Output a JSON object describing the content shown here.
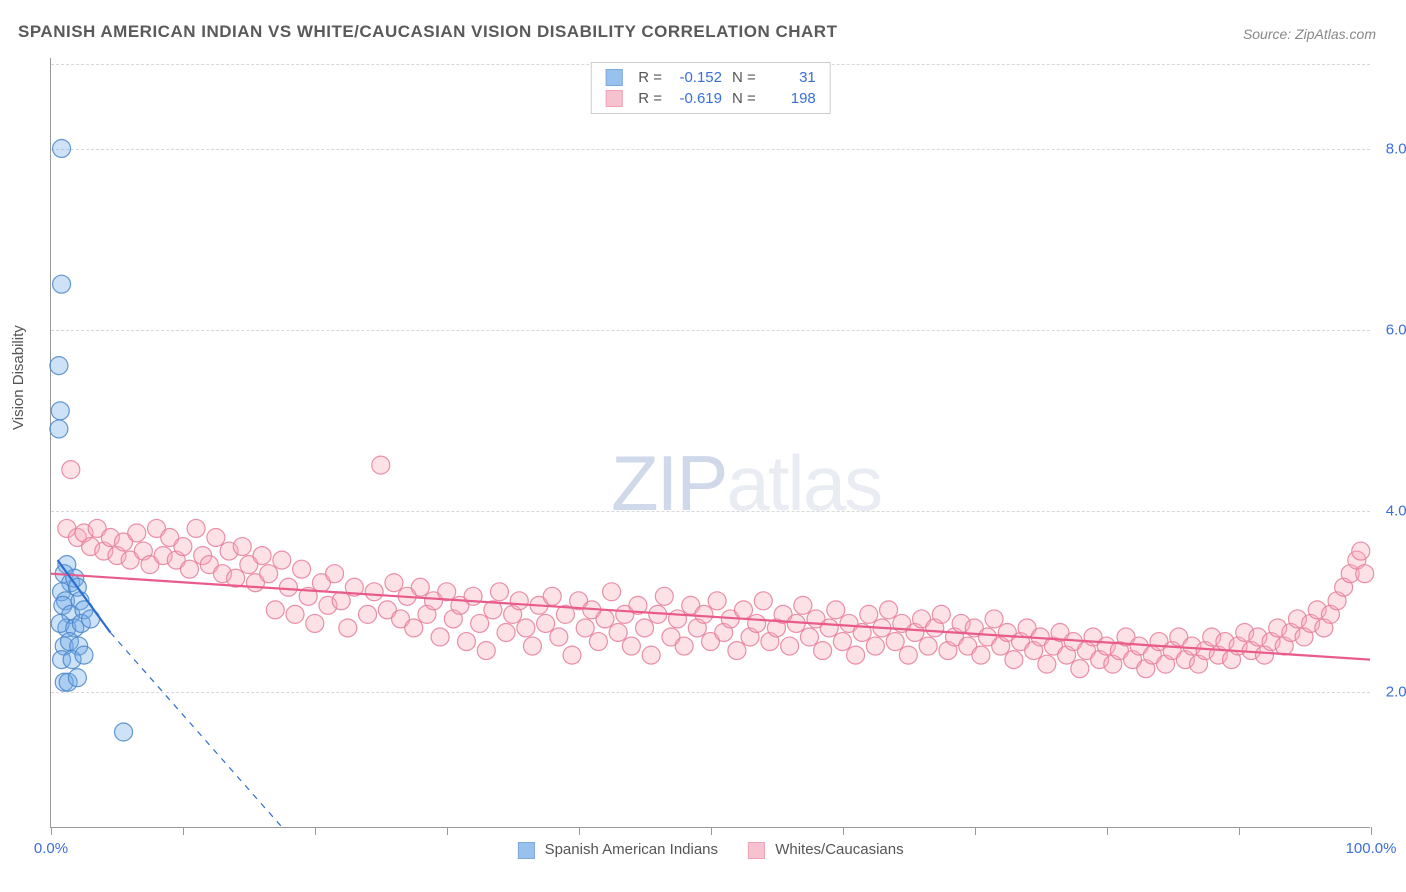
{
  "title": "SPANISH AMERICAN INDIAN VS WHITE/CAUCASIAN VISION DISABILITY CORRELATION CHART",
  "source": "Source: ZipAtlas.com",
  "ylabel": "Vision Disability",
  "watermark_zip": "ZIP",
  "watermark_atlas": "atlas",
  "chart": {
    "type": "scatter",
    "background_color": "#ffffff",
    "grid_color": "#d8d8d8",
    "axis_color": "#999999",
    "label_color": "#555555",
    "tick_label_color": "#3a6fd8",
    "title_fontsize": 17,
    "label_fontsize": 15,
    "tick_fontsize": 15,
    "xlim": [
      0,
      100
    ],
    "ylim": [
      0.5,
      9.0
    ],
    "x_ticks": [
      0,
      10,
      20,
      30,
      40,
      50,
      60,
      70,
      80,
      90,
      100
    ],
    "x_tick_labels": {
      "0": "0.0%",
      "100": "100.0%"
    },
    "y_ticks": [
      2.0,
      4.0,
      6.0,
      8.0
    ],
    "y_tick_labels": [
      "2.0%",
      "4.0%",
      "6.0%",
      "8.0%"
    ],
    "marker_radius": 9,
    "marker_fill_opacity": 0.35,
    "marker_stroke_opacity": 0.85,
    "marker_stroke_width": 1.2,
    "trend_line_width": 2.2,
    "series": [
      {
        "name": "Spanish American Indians",
        "color": "#6fa8e8",
        "stroke": "#4a86c9",
        "line_color": "#2e6dd0",
        "R": "-0.152",
        "N": "31",
        "trend_solid": {
          "x1": 0.5,
          "y1": 3.45,
          "x2": 4.5,
          "y2": 2.65
        },
        "trend_dashed": {
          "x1": 4.5,
          "y1": 2.65,
          "x2": 17.5,
          "y2": 0.5
        },
        "points": [
          [
            0.8,
            8.0
          ],
          [
            0.8,
            6.5
          ],
          [
            0.6,
            5.6
          ],
          [
            0.7,
            5.1
          ],
          [
            0.6,
            4.9
          ],
          [
            1.2,
            3.4
          ],
          [
            1.0,
            3.3
          ],
          [
            1.5,
            3.2
          ],
          [
            1.8,
            3.25
          ],
          [
            0.8,
            3.1
          ],
          [
            1.1,
            3.0
          ],
          [
            2.0,
            3.15
          ],
          [
            2.2,
            3.0
          ],
          [
            0.9,
            2.95
          ],
          [
            1.5,
            2.85
          ],
          [
            2.5,
            2.9
          ],
          [
            1.2,
            2.7
          ],
          [
            0.7,
            2.75
          ],
          [
            1.8,
            2.7
          ],
          [
            2.3,
            2.75
          ],
          [
            3.0,
            2.8
          ],
          [
            1.0,
            2.5
          ],
          [
            1.4,
            2.55
          ],
          [
            2.1,
            2.5
          ],
          [
            0.8,
            2.35
          ],
          [
            1.6,
            2.35
          ],
          [
            2.5,
            2.4
          ],
          [
            1.0,
            2.1
          ],
          [
            1.3,
            2.1
          ],
          [
            2.0,
            2.15
          ],
          [
            5.5,
            1.55
          ]
        ]
      },
      {
        "name": "Whites/Caucasians",
        "color": "#f5a9bb",
        "stroke": "#e77d9a",
        "line_color": "#e85b8a",
        "R": "-0.619",
        "N": "198",
        "trend_solid": {
          "x1": 0,
          "y1": 3.3,
          "x2": 100,
          "y2": 2.35
        },
        "points": [
          [
            1.5,
            4.45
          ],
          [
            1.2,
            3.8
          ],
          [
            2.0,
            3.7
          ],
          [
            2.5,
            3.75
          ],
          [
            3.0,
            3.6
          ],
          [
            3.5,
            3.8
          ],
          [
            4.0,
            3.55
          ],
          [
            4.5,
            3.7
          ],
          [
            5.0,
            3.5
          ],
          [
            5.5,
            3.65
          ],
          [
            6.0,
            3.45
          ],
          [
            6.5,
            3.75
          ],
          [
            7.0,
            3.55
          ],
          [
            7.5,
            3.4
          ],
          [
            8.0,
            3.8
          ],
          [
            8.5,
            3.5
          ],
          [
            9.0,
            3.7
          ],
          [
            9.5,
            3.45
          ],
          [
            10.0,
            3.6
          ],
          [
            10.5,
            3.35
          ],
          [
            11.0,
            3.8
          ],
          [
            11.5,
            3.5
          ],
          [
            12.0,
            3.4
          ],
          [
            12.5,
            3.7
          ],
          [
            13.0,
            3.3
          ],
          [
            13.5,
            3.55
          ],
          [
            14.0,
            3.25
          ],
          [
            14.5,
            3.6
          ],
          [
            15.0,
            3.4
          ],
          [
            15.5,
            3.2
          ],
          [
            16.0,
            3.5
          ],
          [
            16.5,
            3.3
          ],
          [
            17.0,
            2.9
          ],
          [
            17.5,
            3.45
          ],
          [
            18.0,
            3.15
          ],
          [
            18.5,
            2.85
          ],
          [
            19.0,
            3.35
          ],
          [
            19.5,
            3.05
          ],
          [
            20.0,
            2.75
          ],
          [
            20.5,
            3.2
          ],
          [
            21.0,
            2.95
          ],
          [
            21.5,
            3.3
          ],
          [
            22.0,
            3.0
          ],
          [
            22.5,
            2.7
          ],
          [
            23.0,
            3.15
          ],
          [
            24.0,
            2.85
          ],
          [
            24.5,
            3.1
          ],
          [
            25.0,
            4.5
          ],
          [
            25.5,
            2.9
          ],
          [
            26.0,
            3.2
          ],
          [
            26.5,
            2.8
          ],
          [
            27.0,
            3.05
          ],
          [
            27.5,
            2.7
          ],
          [
            28.0,
            3.15
          ],
          [
            28.5,
            2.85
          ],
          [
            29.0,
            3.0
          ],
          [
            29.5,
            2.6
          ],
          [
            30.0,
            3.1
          ],
          [
            30.5,
            2.8
          ],
          [
            31.0,
            2.95
          ],
          [
            31.5,
            2.55
          ],
          [
            32.0,
            3.05
          ],
          [
            32.5,
            2.75
          ],
          [
            33.0,
            2.45
          ],
          [
            33.5,
            2.9
          ],
          [
            34.0,
            3.1
          ],
          [
            34.5,
            2.65
          ],
          [
            35.0,
            2.85
          ],
          [
            35.5,
            3.0
          ],
          [
            36.0,
            2.7
          ],
          [
            36.5,
            2.5
          ],
          [
            37.0,
            2.95
          ],
          [
            37.5,
            2.75
          ],
          [
            38.0,
            3.05
          ],
          [
            38.5,
            2.6
          ],
          [
            39.0,
            2.85
          ],
          [
            39.5,
            2.4
          ],
          [
            40.0,
            3.0
          ],
          [
            40.5,
            2.7
          ],
          [
            41.0,
            2.9
          ],
          [
            41.5,
            2.55
          ],
          [
            42.0,
            2.8
          ],
          [
            42.5,
            3.1
          ],
          [
            43.0,
            2.65
          ],
          [
            43.5,
            2.85
          ],
          [
            44.0,
            2.5
          ],
          [
            44.5,
            2.95
          ],
          [
            45.0,
            2.7
          ],
          [
            45.5,
            2.4
          ],
          [
            46.0,
            2.85
          ],
          [
            46.5,
            3.05
          ],
          [
            47.0,
            2.6
          ],
          [
            47.5,
            2.8
          ],
          [
            48.0,
            2.5
          ],
          [
            48.5,
            2.95
          ],
          [
            49.0,
            2.7
          ],
          [
            49.5,
            2.85
          ],
          [
            50.0,
            2.55
          ],
          [
            50.5,
            3.0
          ],
          [
            51.0,
            2.65
          ],
          [
            51.5,
            2.8
          ],
          [
            52.0,
            2.45
          ],
          [
            52.5,
            2.9
          ],
          [
            53.0,
            2.6
          ],
          [
            53.5,
            2.75
          ],
          [
            54.0,
            3.0
          ],
          [
            54.5,
            2.55
          ],
          [
            55.0,
            2.7
          ],
          [
            55.5,
            2.85
          ],
          [
            56.0,
            2.5
          ],
          [
            56.5,
            2.75
          ],
          [
            57.0,
            2.95
          ],
          [
            57.5,
            2.6
          ],
          [
            58.0,
            2.8
          ],
          [
            58.5,
            2.45
          ],
          [
            59.0,
            2.7
          ],
          [
            59.5,
            2.9
          ],
          [
            60.0,
            2.55
          ],
          [
            60.5,
            2.75
          ],
          [
            61.0,
            2.4
          ],
          [
            61.5,
            2.65
          ],
          [
            62.0,
            2.85
          ],
          [
            62.5,
            2.5
          ],
          [
            63.0,
            2.7
          ],
          [
            63.5,
            2.9
          ],
          [
            64.0,
            2.55
          ],
          [
            64.5,
            2.75
          ],
          [
            65.0,
            2.4
          ],
          [
            65.5,
            2.65
          ],
          [
            66.0,
            2.8
          ],
          [
            66.5,
            2.5
          ],
          [
            67.0,
            2.7
          ],
          [
            67.5,
            2.85
          ],
          [
            68.0,
            2.45
          ],
          [
            68.5,
            2.6
          ],
          [
            69.0,
            2.75
          ],
          [
            69.5,
            2.5
          ],
          [
            70.0,
            2.7
          ],
          [
            70.5,
            2.4
          ],
          [
            71.0,
            2.6
          ],
          [
            71.5,
            2.8
          ],
          [
            72.0,
            2.5
          ],
          [
            72.5,
            2.65
          ],
          [
            73.0,
            2.35
          ],
          [
            73.5,
            2.55
          ],
          [
            74.0,
            2.7
          ],
          [
            74.5,
            2.45
          ],
          [
            75.0,
            2.6
          ],
          [
            75.5,
            2.3
          ],
          [
            76.0,
            2.5
          ],
          [
            76.5,
            2.65
          ],
          [
            77.0,
            2.4
          ],
          [
            77.5,
            2.55
          ],
          [
            78.0,
            2.25
          ],
          [
            78.5,
            2.45
          ],
          [
            79.0,
            2.6
          ],
          [
            79.5,
            2.35
          ],
          [
            80.0,
            2.5
          ],
          [
            80.5,
            2.3
          ],
          [
            81.0,
            2.45
          ],
          [
            81.5,
            2.6
          ],
          [
            82.0,
            2.35
          ],
          [
            82.5,
            2.5
          ],
          [
            83.0,
            2.25
          ],
          [
            83.5,
            2.4
          ],
          [
            84.0,
            2.55
          ],
          [
            84.5,
            2.3
          ],
          [
            85.0,
            2.45
          ],
          [
            85.5,
            2.6
          ],
          [
            86.0,
            2.35
          ],
          [
            86.5,
            2.5
          ],
          [
            87.0,
            2.3
          ],
          [
            87.5,
            2.45
          ],
          [
            88.0,
            2.6
          ],
          [
            88.5,
            2.4
          ],
          [
            89.0,
            2.55
          ],
          [
            89.5,
            2.35
          ],
          [
            90.0,
            2.5
          ],
          [
            90.5,
            2.65
          ],
          [
            91.0,
            2.45
          ],
          [
            91.5,
            2.6
          ],
          [
            92.0,
            2.4
          ],
          [
            92.5,
            2.55
          ],
          [
            93.0,
            2.7
          ],
          [
            93.5,
            2.5
          ],
          [
            94.0,
            2.65
          ],
          [
            94.5,
            2.8
          ],
          [
            95.0,
            2.6
          ],
          [
            95.5,
            2.75
          ],
          [
            96.0,
            2.9
          ],
          [
            96.5,
            2.7
          ],
          [
            97.0,
            2.85
          ],
          [
            97.5,
            3.0
          ],
          [
            98.0,
            3.15
          ],
          [
            98.5,
            3.3
          ],
          [
            99.0,
            3.45
          ],
          [
            99.3,
            3.55
          ],
          [
            99.6,
            3.3
          ]
        ]
      }
    ]
  }
}
